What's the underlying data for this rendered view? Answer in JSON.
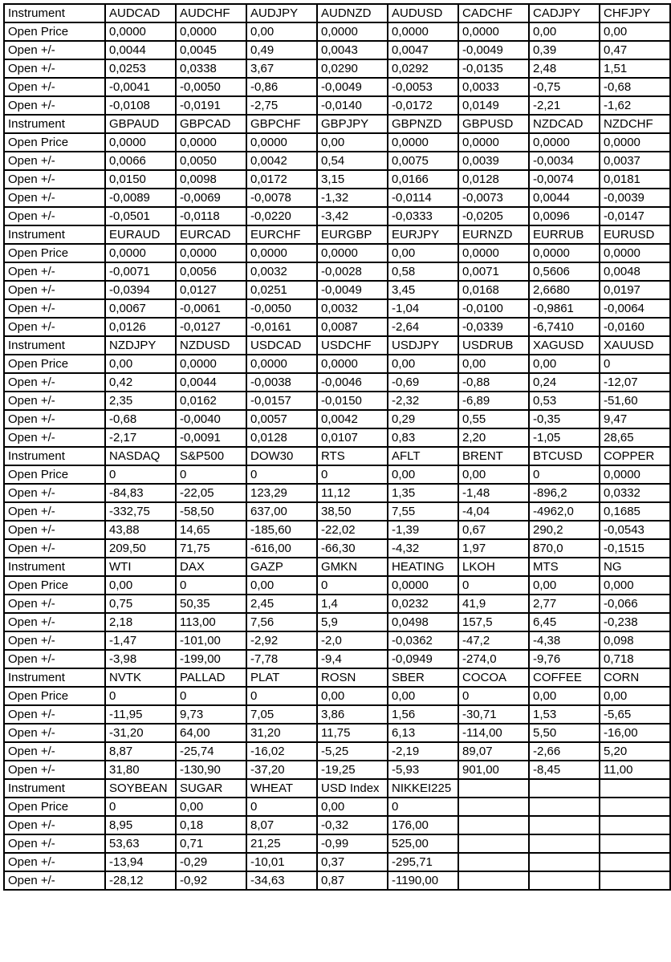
{
  "row_labels": {
    "instrument": "Instrument",
    "open_price": "Open Price",
    "open_change": "Open +/-"
  },
  "colors": {
    "red": "#FF0000",
    "green": "#00B050",
    "orange": "#FFC000",
    "label_blue": "#B4C6E7",
    "border": "#000000"
  },
  "columns_per_block": 8,
  "blocks": [
    {
      "instruments": [
        {
          "name": "AUDCAD",
          "color": "red",
          "open_price": "0,0000",
          "changes": [
            "0,0044",
            "0,0253",
            "-0,0041",
            "-0,0108"
          ]
        },
        {
          "name": "AUDCHF",
          "color": "red",
          "open_price": "0,0000",
          "changes": [
            "0,0045",
            "0,0338",
            "-0,0050",
            "-0,0191"
          ]
        },
        {
          "name": "AUDJPY",
          "color": "red",
          "open_price": "0,00",
          "changes": [
            "0,49",
            "3,67",
            "-0,86",
            "-2,75"
          ]
        },
        {
          "name": "AUDNZD",
          "color": "red",
          "open_price": "0,0000",
          "changes": [
            "0,0043",
            "0,0290",
            "-0,0049",
            "-0,0140"
          ]
        },
        {
          "name": "AUDUSD",
          "color": "red",
          "open_price": "0,0000",
          "changes": [
            "0,0047",
            "0,0292",
            "-0,0053",
            "-0,0172"
          ]
        },
        {
          "name": "CADCHF",
          "color": "green",
          "open_price": "0,0000",
          "changes": [
            "-0,0049",
            "-0,0135",
            "0,0033",
            "0,0149"
          ]
        },
        {
          "name": "CADJPY",
          "color": "red",
          "open_price": "0,00",
          "changes": [
            "0,39",
            "2,48",
            "-0,75",
            "-2,21"
          ]
        },
        {
          "name": "CHFJPY",
          "color": "red",
          "open_price": "0,00",
          "changes": [
            "0,47",
            "1,51",
            "-0,68",
            "-1,62"
          ]
        }
      ]
    },
    {
      "instruments": [
        {
          "name": "GBPAUD",
          "color": "red",
          "open_price": "0,0000",
          "changes": [
            "0,0066",
            "0,0150",
            "-0,0089",
            "-0,0501"
          ]
        },
        {
          "name": "GBPCAD",
          "color": "red",
          "open_price": "0,0000",
          "changes": [
            "0,0050",
            "0,0098",
            "-0,0069",
            "-0,0118"
          ]
        },
        {
          "name": "GBPCHF",
          "color": "red",
          "open_price": "0,0000",
          "changes": [
            "0,0042",
            "0,0172",
            "-0,0078",
            "-0,0220"
          ]
        },
        {
          "name": "GBPJPY",
          "color": "red",
          "open_price": "0,00",
          "changes": [
            "0,54",
            "3,15",
            "-1,32",
            "-3,42"
          ]
        },
        {
          "name": "GBPNZD",
          "color": "red",
          "open_price": "0,0000",
          "changes": [
            "0,0075",
            "0,0166",
            "-0,0114",
            "-0,0333"
          ]
        },
        {
          "name": "GBPUSD",
          "color": "red",
          "open_price": "0,0000",
          "changes": [
            "0,0039",
            "0,0128",
            "-0,0073",
            "-0,0205"
          ]
        },
        {
          "name": "NZDCAD",
          "color": "green",
          "open_price": "0,0000",
          "changes": [
            "-0,0034",
            "-0,0074",
            "0,0044",
            "0,0096"
          ]
        },
        {
          "name": "NZDCHF",
          "color": "red",
          "open_price": "0,0000",
          "changes": [
            "0,0037",
            "0,0181",
            "-0,0039",
            "-0,0147"
          ]
        }
      ]
    },
    {
      "instruments": [
        {
          "name": "EURAUD",
          "color": "green",
          "open_price": "0,0000",
          "changes": [
            "-0,0071",
            "-0,0394",
            "0,0067",
            "0,0126"
          ]
        },
        {
          "name": "EURCAD",
          "color": "red",
          "open_price": "0,0000",
          "changes": [
            "0,0056",
            "0,0127",
            "-0,0061",
            "-0,0127"
          ]
        },
        {
          "name": "EURCHF",
          "color": "red",
          "open_price": "0,0000",
          "changes": [
            "0,0032",
            "0,0251",
            "-0,0050",
            "-0,0161"
          ]
        },
        {
          "name": "EURGBP",
          "color": "green",
          "open_price": "0,0000",
          "changes": [
            "-0,0028",
            "-0,0049",
            "0,0032",
            "0,0087"
          ]
        },
        {
          "name": "EURJPY",
          "color": "red",
          "open_price": "0,00",
          "changes": [
            "0,58",
            "3,45",
            "-1,04",
            "-2,64"
          ]
        },
        {
          "name": "EURNZD",
          "color": "red",
          "open_price": "0,0000",
          "changes": [
            "0,0071",
            "0,0168",
            "-0,0100",
            "-0,0339"
          ]
        },
        {
          "name": "EURRUB",
          "color": "red",
          "open_price": "0,0000",
          "changes": [
            "0,5606",
            "2,6680",
            "-0,9861",
            "-6,7410"
          ]
        },
        {
          "name": "EURUSD",
          "color": "red",
          "open_price": "0,0000",
          "changes": [
            "0,0048",
            "0,0197",
            "-0,0064",
            "-0,0160"
          ]
        }
      ]
    },
    {
      "instruments": [
        {
          "name": "NZDJPY",
          "color": "red",
          "open_price": "0,00",
          "changes": [
            "0,42",
            "2,35",
            "-0,68",
            "-2,17"
          ]
        },
        {
          "name": "NZDUSD",
          "color": "red",
          "open_price": "0,0000",
          "changes": [
            "0,0044",
            "0,0162",
            "-0,0040",
            "-0,0091"
          ]
        },
        {
          "name": "USDCAD",
          "color": "green",
          "open_price": "0,0000",
          "changes": [
            "-0,0038",
            "-0,0157",
            "0,0057",
            "0,0128"
          ]
        },
        {
          "name": "USDCHF",
          "color": "green",
          "open_price": "0,0000",
          "changes": [
            "-0,0046",
            "-0,0150",
            "0,0042",
            "0,0107"
          ]
        },
        {
          "name": "USDJPY",
          "color": "green",
          "open_price": "0,00",
          "changes": [
            "-0,69",
            "-2,32",
            "0,29",
            "0,83"
          ]
        },
        {
          "name": "USDRUB",
          "color": "green",
          "open_price": "0,00",
          "changes": [
            "-0,88",
            "-6,89",
            "0,55",
            "2,20"
          ]
        },
        {
          "name": "XAGUSD",
          "color": "red",
          "open_price": "0,00",
          "changes": [
            "0,24",
            "0,53",
            "-0,35",
            "-1,05"
          ]
        },
        {
          "name": "XAUUSD",
          "color": "green",
          "open_price": "0",
          "changes": [
            "-12,07",
            "-51,60",
            "9,47",
            "28,65"
          ]
        }
      ]
    },
    {
      "instruments": [
        {
          "name": "NASDAQ",
          "color": "green",
          "open_price": "0",
          "changes": [
            "-84,83",
            "-332,75",
            "43,88",
            "209,50"
          ]
        },
        {
          "name": "S&P500",
          "color": "green",
          "open_price": "0",
          "changes": [
            "-22,05",
            "-58,50",
            "14,65",
            "71,75"
          ]
        },
        {
          "name": "DOW30",
          "color": "red",
          "open_price": "0",
          "changes": [
            "123,29",
            "637,00",
            "-185,60",
            "-616,00"
          ]
        },
        {
          "name": "RTS",
          "color": "red",
          "open_price": "0",
          "changes": [
            "11,12",
            "38,50",
            "-22,02",
            "-66,30"
          ]
        },
        {
          "name": "AFLT",
          "color": "red",
          "open_price": "0,00",
          "changes": [
            "1,35",
            "7,55",
            "-1,39",
            "-4,32"
          ]
        },
        {
          "name": "BRENT",
          "color": "green",
          "open_price": "0,00",
          "changes": [
            "-1,48",
            "-4,04",
            "0,67",
            "1,97"
          ]
        },
        {
          "name": "BTCUSD",
          "color": "green",
          "open_price": "0",
          "changes": [
            "-896,2",
            "-4962,0",
            "290,2",
            "870,0"
          ]
        },
        {
          "name": "COPPER",
          "color": "red",
          "open_price": "0,0000",
          "changes": [
            "0,0332",
            "0,1685",
            "-0,0543",
            "-0,1515"
          ]
        }
      ]
    },
    {
      "instruments": [
        {
          "name": "WTI",
          "color": "red",
          "open_price": "0,00",
          "changes": [
            "0,75",
            "2,18",
            "-1,47",
            "-3,98"
          ]
        },
        {
          "name": "DAX",
          "color": "red",
          "open_price": "0",
          "changes": [
            "50,35",
            "113,00",
            "-101,00",
            "-199,00"
          ]
        },
        {
          "name": "GAZP",
          "color": "red",
          "open_price": "0,00",
          "changes": [
            "2,45",
            "7,56",
            "-2,92",
            "-7,78"
          ]
        },
        {
          "name": "GMKN",
          "color": "red",
          "open_price": "0",
          "changes": [
            "1,4",
            "5,9",
            "-2,0",
            "-9,4"
          ]
        },
        {
          "name": "HEATING",
          "color": "red",
          "open_price": "0,0000",
          "changes": [
            "0,0232",
            "0,0498",
            "-0,0362",
            "-0,0949"
          ]
        },
        {
          "name": "LKOH",
          "color": "red",
          "open_price": "0",
          "changes": [
            "41,9",
            "157,5",
            "-47,2",
            "-274,0"
          ]
        },
        {
          "name": "MTS",
          "color": "red",
          "open_price": "0,00",
          "changes": [
            "2,77",
            "6,45",
            "-4,38",
            "-9,76"
          ]
        },
        {
          "name": "NG",
          "color": "green",
          "open_price": "0,000",
          "changes": [
            "-0,066",
            "-0,238",
            "0,098",
            "0,718"
          ]
        }
      ]
    },
    {
      "instruments": [
        {
          "name": "NVTK",
          "color": "green",
          "open_price": "0",
          "changes": [
            "-11,95",
            "-31,20",
            "8,87",
            "31,80"
          ]
        },
        {
          "name": "PALLAD",
          "color": "red",
          "open_price": "0",
          "changes": [
            "9,73",
            "64,00",
            "-25,74",
            "-130,90"
          ]
        },
        {
          "name": "PLAT",
          "color": "red",
          "open_price": "0",
          "changes": [
            "7,05",
            "31,20",
            "-16,02",
            "-37,20"
          ]
        },
        {
          "name": "ROSN",
          "color": "red",
          "open_price": "0,00",
          "changes": [
            "3,86",
            "11,75",
            "-5,25",
            "-19,25"
          ]
        },
        {
          "name": "SBER",
          "color": "red",
          "open_price": "0,00",
          "changes": [
            "1,56",
            "6,13",
            "-2,19",
            "-5,93"
          ]
        },
        {
          "name": "COCOA",
          "color": "green",
          "open_price": "0",
          "changes": [
            "-30,71",
            "-114,00",
            "89,07",
            "901,00"
          ]
        },
        {
          "name": "COFFEE",
          "color": "red",
          "open_price": "0,00",
          "changes": [
            "1,53",
            "5,50",
            "-2,66",
            "-8,45"
          ]
        },
        {
          "name": "CORN",
          "color": "green",
          "open_price": "0,00",
          "changes": [
            "-5,65",
            "-16,00",
            "5,20",
            "11,00"
          ]
        }
      ]
    },
    {
      "instruments": [
        {
          "name": "SOYBEAN",
          "color": "red",
          "open_price": "0",
          "changes": [
            "8,95",
            "53,63",
            "-13,94",
            "-28,12"
          ]
        },
        {
          "name": "SUGAR",
          "color": "red",
          "open_price": "0,00",
          "changes": [
            "0,18",
            "0,71",
            "-0,29",
            "-0,92"
          ]
        },
        {
          "name": "WHEAT",
          "color": "red",
          "open_price": "0",
          "changes": [
            "8,07",
            "21,25",
            "-10,01",
            "-34,63"
          ]
        },
        {
          "name": "USD Index",
          "color": "green",
          "open_price": "0,00",
          "changes": [
            "-0,32",
            "-0,99",
            "0,37",
            "0,87"
          ]
        },
        {
          "name": "NIKKEI225",
          "color": "red",
          "open_price": "0",
          "changes": [
            "176,00",
            "525,00",
            "-295,71",
            "-1190,00"
          ]
        }
      ]
    }
  ]
}
